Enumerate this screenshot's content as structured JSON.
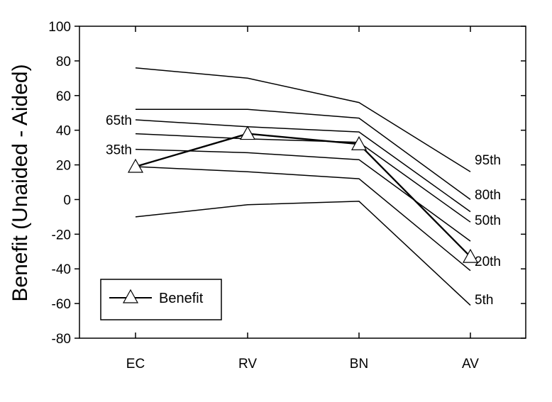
{
  "chart_data": {
    "type": "line",
    "title": "",
    "xlabel": "",
    "ylabel": "Benefit (Unaided - Aided)",
    "categories": [
      "EC",
      "RV",
      "BN",
      "AV"
    ],
    "ylim": [
      -80,
      100
    ],
    "yticks": [
      100,
      80,
      60,
      40,
      20,
      0,
      -20,
      -40,
      -60,
      -80
    ],
    "grid": false,
    "legend": {
      "placement": "bottom-left",
      "entries": [
        "Benefit"
      ]
    },
    "percentile_series": [
      {
        "name": "95th",
        "values": [
          76,
          70,
          56,
          16
        ]
      },
      {
        "name": "80th",
        "values": [
          52,
          52,
          47,
          0
        ]
      },
      {
        "name": "65th",
        "values": [
          46,
          42,
          39,
          -7
        ]
      },
      {
        "name": "50th",
        "values": [
          38,
          35,
          33,
          -13
        ]
      },
      {
        "name": "35th",
        "values": [
          29,
          27,
          23,
          -24
        ]
      },
      {
        "name": "20th",
        "values": [
          19,
          16,
          12,
          -41
        ]
      },
      {
        "name": "5th",
        "values": [
          -10,
          -3,
          -1,
          -61
        ]
      }
    ],
    "series": [
      {
        "name": "Benefit",
        "marker": "triangle",
        "values": [
          19,
          38,
          32,
          -33
        ]
      }
    ],
    "annotations": {
      "left": [
        "65th",
        "35th"
      ],
      "right": [
        "95th",
        "80th",
        "50th",
        "20th",
        "5th"
      ]
    }
  }
}
